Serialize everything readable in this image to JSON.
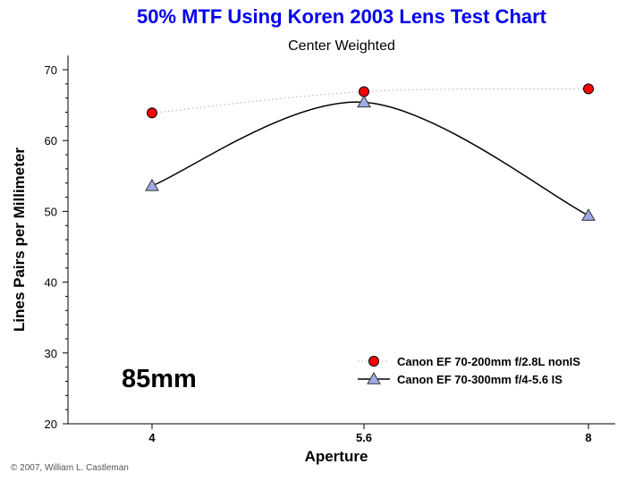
{
  "chart_data": {
    "type": "line",
    "title": "50% MTF Using Koren 2003 Lens Test Chart",
    "subtitle": "Center Weighted",
    "xlabel": "Aperture",
    "ylabel": "Lines Pairs per Millimeter",
    "categories": [
      "4",
      "5.6",
      "8"
    ],
    "ylim": [
      20,
      70
    ],
    "yticks": [
      "20",
      "30",
      "40",
      "50",
      "60",
      "70"
    ],
    "series": [
      {
        "name": "Canon EF 70-200mm f/2.8L nonIS",
        "values": [
          63.9,
          66.9,
          67.3
        ],
        "color": "#ff0000",
        "marker": "circle",
        "line": "dotted"
      },
      {
        "name": "Canon EF 70-300mm f/4-5.6 IS",
        "values": [
          53.6,
          65.4,
          49.4
        ],
        "color": "#000000",
        "marker": "triangle",
        "line": "solid"
      }
    ],
    "legend_position": "bottom-right",
    "annotation": "85mm",
    "credit": "© 2007, William L. Castleman"
  },
  "colors": {
    "title": "#0000ee",
    "circle_marker": "#ff0000",
    "triangle_marker": "#a0a8e8",
    "dotted_line": "#b0b0b0"
  }
}
